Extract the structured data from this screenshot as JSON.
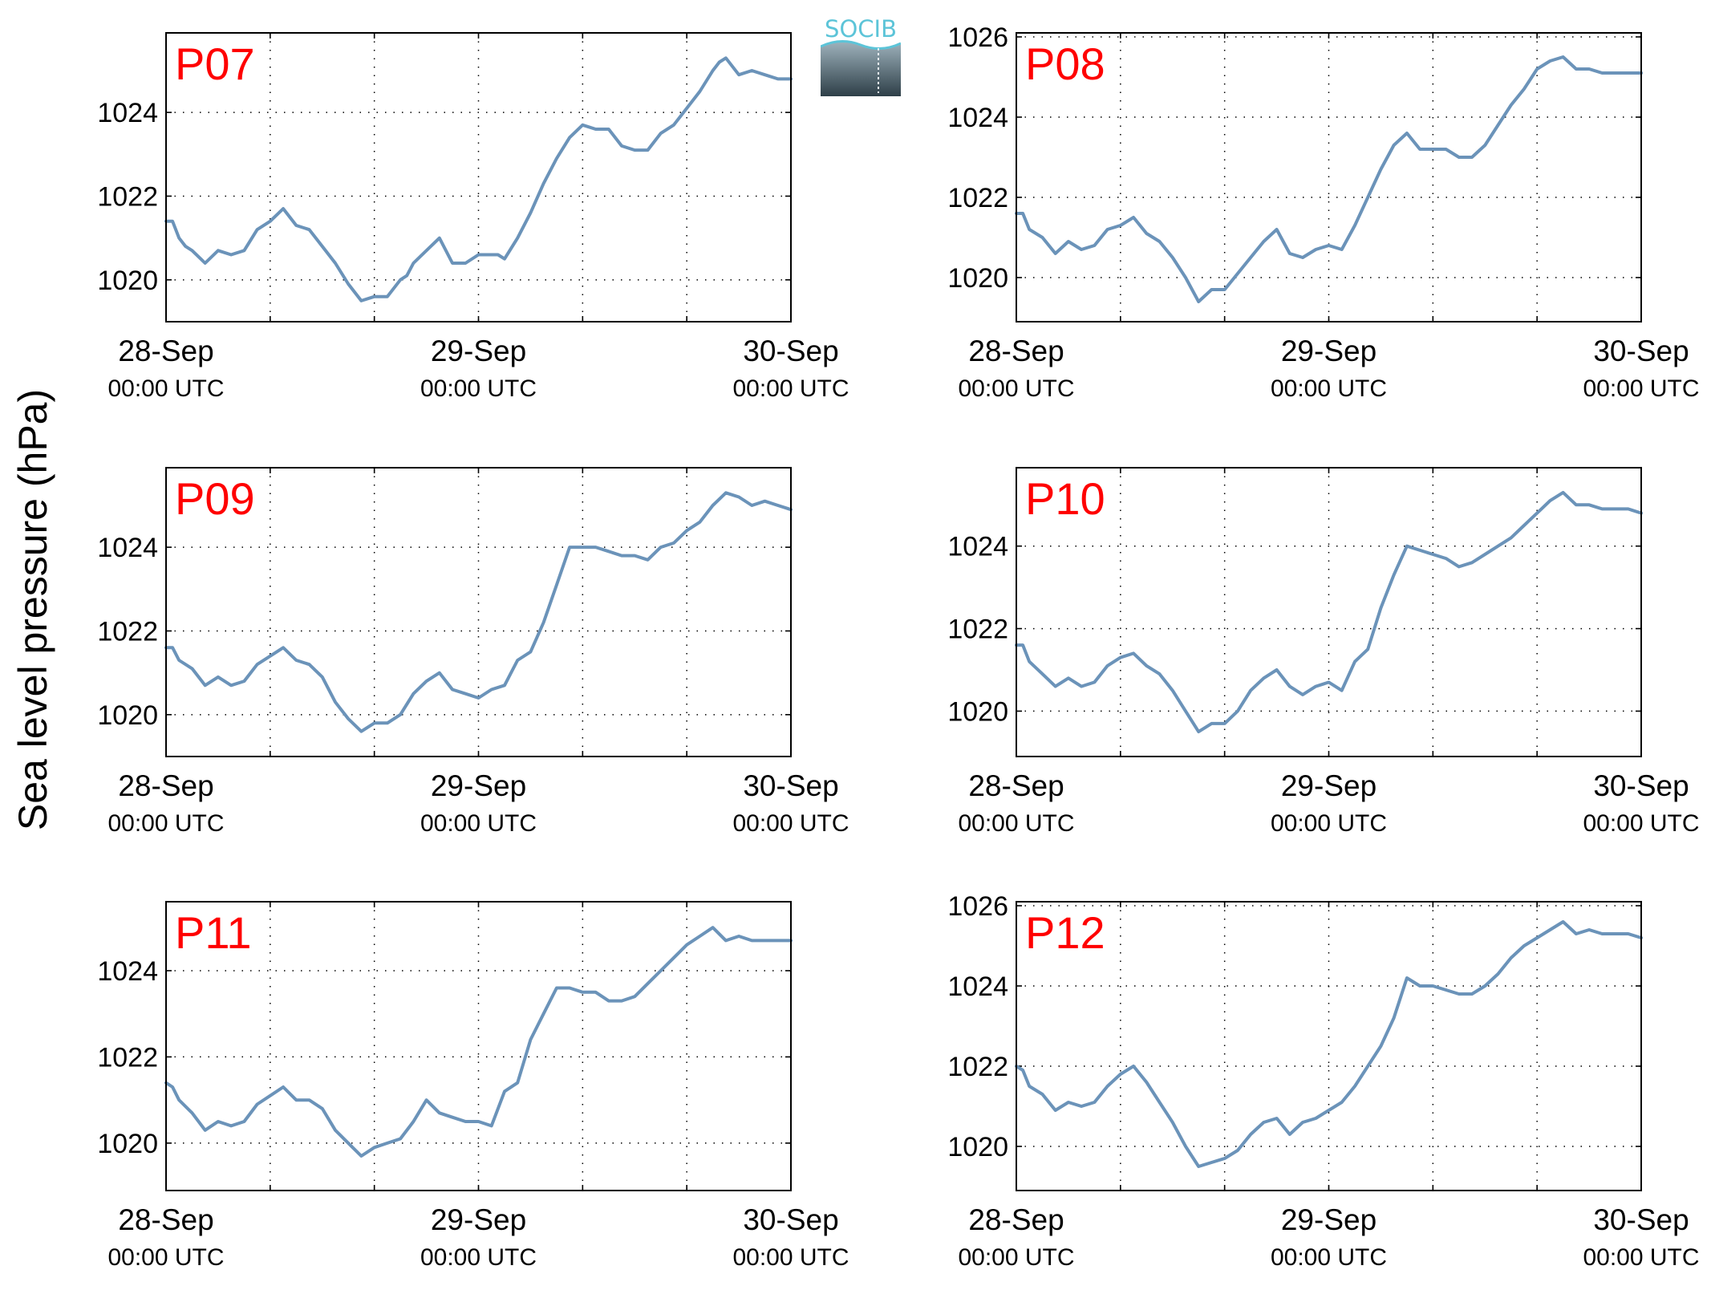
{
  "figure": {
    "ylabel": "Sea level pressure (hPa)",
    "logo_text": "SOCIB",
    "colors": {
      "line": "#6b93b9",
      "panel_label": "#ff0000",
      "axes": "#000000",
      "grid": "#000000"
    }
  },
  "chart_data": [
    {
      "type": "line",
      "title": "P07",
      "x_ticks": [
        {
          "day": "28-Sep",
          "time": "00:00 UTC"
        },
        {
          "day": "29-Sep",
          "time": "00:00 UTC"
        },
        {
          "day": "30-Sep",
          "time": "00:00 UTC"
        }
      ],
      "xlim_hours": [
        0,
        48
      ],
      "ylim": [
        1019.0,
        1025.9
      ],
      "y_ticks": [
        "1020",
        "1022",
        "1024"
      ],
      "grid": true,
      "series": [
        {
          "x_hours": [
            0,
            0.5,
            1,
            1.5,
            2,
            3,
            4,
            5,
            6,
            7,
            8,
            9,
            10,
            11,
            12,
            13,
            14,
            15,
            16,
            17,
            18,
            18.5,
            19,
            20,
            21,
            22,
            23,
            24,
            25,
            25.5,
            26,
            27,
            28,
            29,
            30,
            31,
            32,
            33,
            34,
            35,
            36,
            37,
            38,
            39,
            40,
            41,
            42,
            42.5,
            43,
            44,
            45,
            46,
            47,
            48
          ],
          "values": [
            1021.4,
            1021.4,
            1021.0,
            1020.8,
            1020.7,
            1020.4,
            1020.7,
            1020.6,
            1020.7,
            1021.2,
            1021.4,
            1021.7,
            1021.3,
            1021.2,
            1020.8,
            1020.4,
            1019.9,
            1019.5,
            1019.6,
            1019.6,
            1020.0,
            1020.1,
            1020.4,
            1020.7,
            1021.0,
            1020.4,
            1020.4,
            1020.6,
            1020.6,
            1020.6,
            1020.5,
            1021.0,
            1021.6,
            1022.3,
            1022.9,
            1023.4,
            1023.7,
            1023.6,
            1023.6,
            1023.2,
            1023.1,
            1023.1,
            1023.5,
            1023.7,
            1024.1,
            1024.5,
            1025.0,
            1025.2,
            1025.3,
            1024.9,
            1025.0,
            1024.9,
            1024.8,
            1024.8
          ]
        }
      ]
    },
    {
      "type": "line",
      "title": "P08",
      "x_ticks": [
        {
          "day": "28-Sep",
          "time": "00:00 UTC"
        },
        {
          "day": "29-Sep",
          "time": "00:00 UTC"
        },
        {
          "day": "30-Sep",
          "time": "00:00 UTC"
        }
      ],
      "xlim_hours": [
        0,
        48
      ],
      "ylim": [
        1018.9,
        1026.1
      ],
      "y_ticks": [
        "1020",
        "1022",
        "1024",
        "1026"
      ],
      "grid": true,
      "series": [
        {
          "x_hours": [
            0,
            0.5,
            1,
            2,
            3,
            4,
            5,
            6,
            7,
            8,
            9,
            10,
            11,
            12,
            13,
            14,
            15,
            16,
            17,
            18,
            19,
            20,
            21,
            22,
            23,
            24,
            25,
            26,
            27,
            28,
            29,
            30,
            31,
            32,
            33,
            34,
            35,
            36,
            37,
            38,
            39,
            40,
            41,
            42,
            43,
            44,
            45,
            46,
            47,
            48
          ],
          "values": [
            1021.6,
            1021.6,
            1021.2,
            1021.0,
            1020.6,
            1020.9,
            1020.7,
            1020.8,
            1021.2,
            1021.3,
            1021.5,
            1021.1,
            1020.9,
            1020.5,
            1020.0,
            1019.4,
            1019.7,
            1019.7,
            1020.1,
            1020.5,
            1020.9,
            1021.2,
            1020.6,
            1020.5,
            1020.7,
            1020.8,
            1020.7,
            1021.3,
            1022.0,
            1022.7,
            1023.3,
            1023.6,
            1023.2,
            1023.2,
            1023.2,
            1023.0,
            1023.0,
            1023.3,
            1023.8,
            1024.3,
            1024.7,
            1025.2,
            1025.4,
            1025.5,
            1025.2,
            1025.2,
            1025.1,
            1025.1,
            1025.1,
            1025.1
          ]
        }
      ]
    },
    {
      "type": "line",
      "title": "P09",
      "x_ticks": [
        {
          "day": "28-Sep",
          "time": "00:00 UTC"
        },
        {
          "day": "29-Sep",
          "time": "00:00 UTC"
        },
        {
          "day": "30-Sep",
          "time": "00:00 UTC"
        }
      ],
      "xlim_hours": [
        0,
        48
      ],
      "ylim": [
        1019.0,
        1025.9
      ],
      "y_ticks": [
        "1020",
        "1022",
        "1024"
      ],
      "grid": true,
      "series": [
        {
          "x_hours": [
            0,
            0.5,
            1,
            2,
            3,
            4,
            5,
            6,
            7,
            8,
            9,
            10,
            11,
            12,
            13,
            14,
            15,
            16,
            17,
            18,
            19,
            20,
            21,
            22,
            23,
            24,
            25,
            26,
            27,
            28,
            29,
            30,
            31,
            32,
            33,
            34,
            35,
            36,
            37,
            38,
            39,
            40,
            41,
            42,
            43,
            44,
            45,
            46,
            47,
            48
          ],
          "values": [
            1021.6,
            1021.6,
            1021.3,
            1021.1,
            1020.7,
            1020.9,
            1020.7,
            1020.8,
            1021.2,
            1021.4,
            1021.6,
            1021.3,
            1021.2,
            1020.9,
            1020.3,
            1019.9,
            1019.6,
            1019.8,
            1019.8,
            1020.0,
            1020.5,
            1020.8,
            1021.0,
            1020.6,
            1020.5,
            1020.4,
            1020.6,
            1020.7,
            1021.3,
            1021.5,
            1022.2,
            1023.1,
            1024.0,
            1024.0,
            1024.0,
            1023.9,
            1023.8,
            1023.8,
            1023.7,
            1024.0,
            1024.1,
            1024.4,
            1024.6,
            1025.0,
            1025.3,
            1025.2,
            1025.0,
            1025.1,
            1025.0,
            1024.9
          ]
        }
      ]
    },
    {
      "type": "line",
      "title": "P10",
      "x_ticks": [
        {
          "day": "28-Sep",
          "time": "00:00 UTC"
        },
        {
          "day": "29-Sep",
          "time": "00:00 UTC"
        },
        {
          "day": "30-Sep",
          "time": "00:00 UTC"
        }
      ],
      "xlim_hours": [
        0,
        48
      ],
      "ylim": [
        1018.9,
        1025.9
      ],
      "y_ticks": [
        "1020",
        "1022",
        "1024"
      ],
      "grid": true,
      "series": [
        {
          "x_hours": [
            0,
            0.5,
            1,
            2,
            3,
            4,
            5,
            6,
            7,
            8,
            9,
            10,
            11,
            12,
            13,
            14,
            15,
            16,
            17,
            18,
            19,
            20,
            21,
            22,
            23,
            24,
            25,
            26,
            27,
            28,
            29,
            30,
            31,
            32,
            33,
            34,
            35,
            36,
            37,
            38,
            39,
            40,
            41,
            42,
            43,
            44,
            45,
            46,
            47,
            48
          ],
          "values": [
            1021.6,
            1021.6,
            1021.2,
            1020.9,
            1020.6,
            1020.8,
            1020.6,
            1020.7,
            1021.1,
            1021.3,
            1021.4,
            1021.1,
            1020.9,
            1020.5,
            1020.0,
            1019.5,
            1019.7,
            1019.7,
            1020.0,
            1020.5,
            1020.8,
            1021.0,
            1020.6,
            1020.4,
            1020.6,
            1020.7,
            1020.5,
            1021.2,
            1021.5,
            1022.5,
            1023.3,
            1024.0,
            1023.9,
            1023.8,
            1023.7,
            1023.5,
            1023.6,
            1023.8,
            1024.0,
            1024.2,
            1024.5,
            1024.8,
            1025.1,
            1025.3,
            1025.0,
            1025.0,
            1024.9,
            1024.9,
            1024.9,
            1024.8
          ]
        }
      ]
    },
    {
      "type": "line",
      "title": "P11",
      "x_ticks": [
        {
          "day": "28-Sep",
          "time": "00:00 UTC"
        },
        {
          "day": "29-Sep",
          "time": "00:00 UTC"
        },
        {
          "day": "30-Sep",
          "time": "00:00 UTC"
        }
      ],
      "xlim_hours": [
        0,
        48
      ],
      "ylim": [
        1018.9,
        1025.6
      ],
      "y_ticks": [
        "1020",
        "1022",
        "1024"
      ],
      "grid": true,
      "series": [
        {
          "x_hours": [
            0,
            0.5,
            1,
            2,
            3,
            4,
            5,
            6,
            7,
            8,
            9,
            10,
            11,
            12,
            13,
            14,
            15,
            16,
            17,
            18,
            19,
            20,
            21,
            22,
            23,
            24,
            25,
            26,
            27,
            28,
            29,
            30,
            31,
            32,
            33,
            34,
            35,
            36,
            37,
            38,
            39,
            40,
            41,
            42,
            43,
            44,
            45,
            46,
            47,
            48
          ],
          "values": [
            1021.4,
            1021.3,
            1021.0,
            1020.7,
            1020.3,
            1020.5,
            1020.4,
            1020.5,
            1020.9,
            1021.1,
            1021.3,
            1021.0,
            1021.0,
            1020.8,
            1020.3,
            1020.0,
            1019.7,
            1019.9,
            1020.0,
            1020.1,
            1020.5,
            1021.0,
            1020.7,
            1020.6,
            1020.5,
            1020.5,
            1020.4,
            1021.2,
            1021.4,
            1022.4,
            1023.0,
            1023.6,
            1023.6,
            1023.5,
            1023.5,
            1023.3,
            1023.3,
            1023.4,
            1023.7,
            1024.0,
            1024.3,
            1024.6,
            1024.8,
            1025.0,
            1024.7,
            1024.8,
            1024.7,
            1024.7,
            1024.7,
            1024.7
          ]
        }
      ]
    },
    {
      "type": "line",
      "title": "P12",
      "x_ticks": [
        {
          "day": "28-Sep",
          "time": "00:00 UTC"
        },
        {
          "day": "29-Sep",
          "time": "00:00 UTC"
        },
        {
          "day": "30-Sep",
          "time": "00:00 UTC"
        }
      ],
      "xlim_hours": [
        0,
        48
      ],
      "ylim": [
        1018.9,
        1026.1
      ],
      "y_ticks": [
        "1020",
        "1022",
        "1024",
        "1026"
      ],
      "grid": true,
      "series": [
        {
          "x_hours": [
            0,
            0.5,
            1,
            2,
            3,
            4,
            5,
            6,
            7,
            8,
            9,
            10,
            11,
            12,
            13,
            14,
            15,
            16,
            17,
            18,
            19,
            20,
            21,
            22,
            23,
            24,
            25,
            26,
            27,
            28,
            29,
            30,
            31,
            32,
            33,
            34,
            35,
            36,
            37,
            38,
            39,
            40,
            41,
            42,
            43,
            44,
            45,
            46,
            47,
            48
          ],
          "values": [
            1022.0,
            1021.9,
            1021.5,
            1021.3,
            1020.9,
            1021.1,
            1021.0,
            1021.1,
            1021.5,
            1021.8,
            1022.0,
            1021.6,
            1021.1,
            1020.6,
            1020.0,
            1019.5,
            1019.6,
            1019.7,
            1019.9,
            1020.3,
            1020.6,
            1020.7,
            1020.3,
            1020.6,
            1020.7,
            1020.9,
            1021.1,
            1021.5,
            1022.0,
            1022.5,
            1023.2,
            1024.2,
            1024.0,
            1024.0,
            1023.9,
            1023.8,
            1023.8,
            1024.0,
            1024.3,
            1024.7,
            1025.0,
            1025.2,
            1025.4,
            1025.6,
            1025.3,
            1025.4,
            1025.3,
            1025.3,
            1025.3,
            1025.2
          ]
        }
      ]
    }
  ]
}
